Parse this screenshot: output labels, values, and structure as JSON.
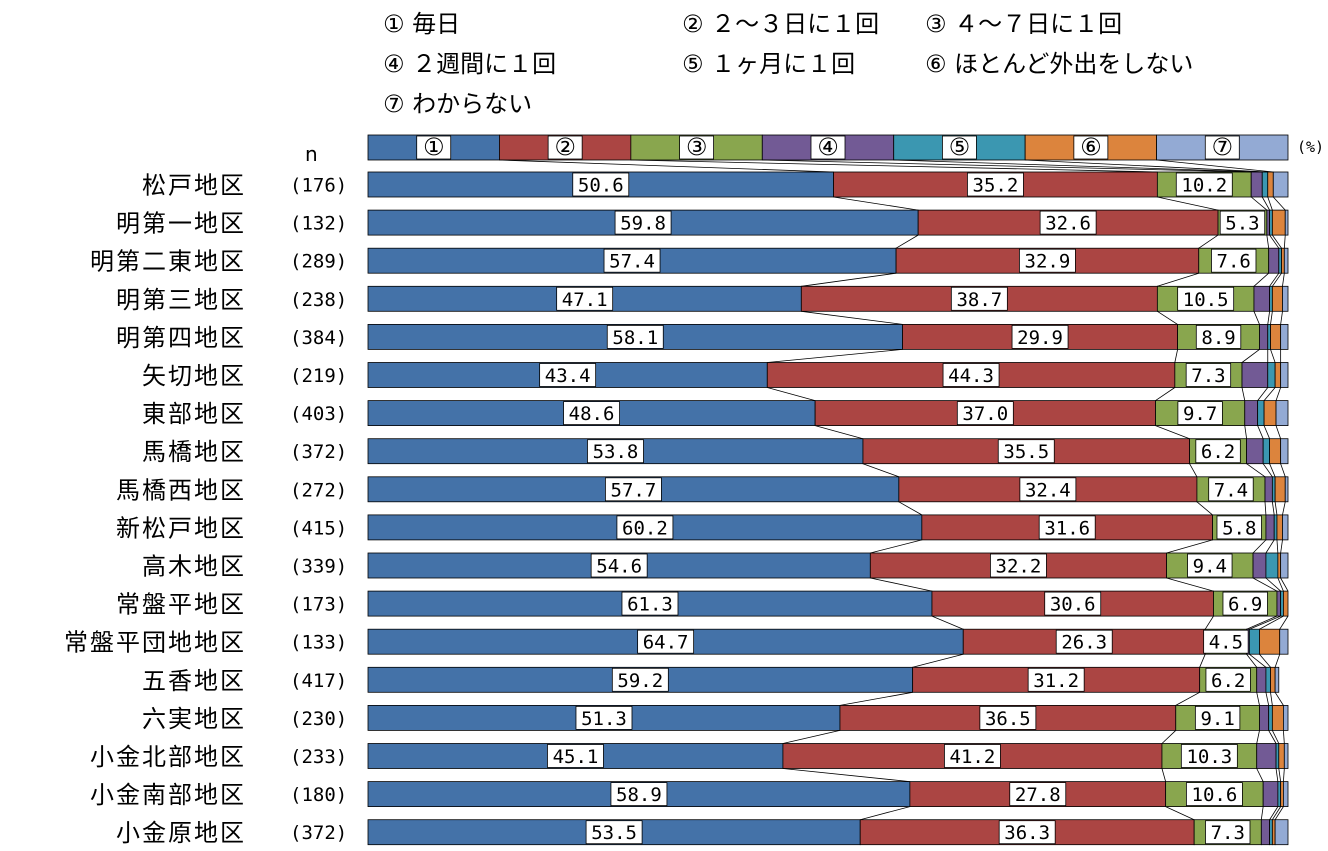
{
  "legend": [
    "① 毎日",
    "② ２～３日に１回",
    "③ ４～７日に１回",
    "④ ２週間に１回",
    "⑤ １ヶ月に１回",
    "⑥ ほとんど外出をしない",
    "⑦ わからない"
  ],
  "header": {
    "n_label": "n",
    "unit_label": "(%)",
    "segment_markers": [
      "①",
      "②",
      "③",
      "④",
      "⑤",
      "⑥",
      "⑦"
    ]
  },
  "chart_data": {
    "type": "bar",
    "orientation": "horizontal",
    "stacked": true,
    "normalized_to_100": true,
    "xlim": [
      0,
      100
    ],
    "categories": [
      "松戸地区",
      "明第一地区",
      "明第二東地区",
      "明第三地区",
      "明第四地区",
      "矢切地区",
      "東部地区",
      "馬橋地区",
      "馬橋西地区",
      "新松戸地区",
      "高木地区",
      "常盤平地区",
      "常盤平団地地区",
      "五香地区",
      "六実地区",
      "小金北部地区",
      "小金南部地区",
      "小金原地区"
    ],
    "n": [
      "(176)",
      "(132)",
      "(289)",
      "(238)",
      "(384)",
      "(219)",
      "(403)",
      "(372)",
      "(272)",
      "(415)",
      "(339)",
      "(173)",
      "(133)",
      "(417)",
      "(230)",
      "(233)",
      "(180)",
      "(372)"
    ],
    "series": [
      {
        "name": "① 毎日",
        "color": "#4472a8",
        "values": [
          50.6,
          59.8,
          57.4,
          47.1,
          58.1,
          43.4,
          48.6,
          53.8,
          57.7,
          60.2,
          54.6,
          61.3,
          64.7,
          59.2,
          51.3,
          45.1,
          58.9,
          53.5
        ],
        "labels": [
          "50.6",
          "59.8",
          "57.4",
          "47.1",
          "58.1",
          "43.4",
          "48.6",
          "53.8",
          "57.7",
          "60.2",
          "54.6",
          "61.3",
          "64.7",
          "59.2",
          "51.3",
          "45.1",
          "58.9",
          "53.5"
        ]
      },
      {
        "name": "② ２～３日に１回",
        "color": "#ab4543",
        "values": [
          35.2,
          32.6,
          32.9,
          38.7,
          29.9,
          44.3,
          37.0,
          35.5,
          32.4,
          31.6,
          32.2,
          30.6,
          26.3,
          31.2,
          36.5,
          41.2,
          27.8,
          36.3
        ],
        "labels": [
          "35.2",
          "32.6",
          "32.9",
          "38.7",
          "29.9",
          "44.3",
          "37.0",
          "35.5",
          "32.4",
          "31.6",
          "32.2",
          "30.6",
          "26.3",
          "31.2",
          "36.5",
          "41.2",
          "27.8",
          "36.3"
        ]
      },
      {
        "name": "③ ４～７日に１回",
        "color": "#89a64e",
        "values": [
          10.2,
          5.3,
          7.6,
          10.5,
          8.9,
          7.3,
          9.7,
          6.2,
          7.4,
          5.8,
          9.4,
          6.9,
          4.5,
          6.2,
          9.1,
          10.3,
          10.6,
          7.3
        ],
        "labels": [
          "10.2",
          "5.3",
          "7.6",
          "10.5",
          "8.9",
          "7.3",
          "9.7",
          "6.2",
          "7.4",
          "5.8",
          "9.4",
          "6.9",
          "4.5",
          "6.2",
          "9.1",
          "10.3",
          "10.6",
          "7.3"
        ]
      },
      {
        "name": "④ ２週間に１回",
        "color": "#725a95",
        "values": [
          1.2,
          0.3,
          1.1,
          1.7,
          0.9,
          2.8,
          1.4,
          1.8,
          0.8,
          0.9,
          1.4,
          0.4,
          0.3,
          1.0,
          1.0,
          2.1,
          1.6,
          0.9
        ]
      },
      {
        "name": "⑤ １ヶ月に１回",
        "color": "#3b97b1",
        "values": [
          0.6,
          0.3,
          0.3,
          0.3,
          0.3,
          0.8,
          0.7,
          0.7,
          0.3,
          0.3,
          1.3,
          0.3,
          1.1,
          0.5,
          0.4,
          0.3,
          0.3,
          0.3
        ]
      },
      {
        "name": "⑥ ほとんど外出をしない",
        "color": "#dc843d",
        "values": [
          0.6,
          1.4,
          0.3,
          1.1,
          1.1,
          0.6,
          1.3,
          1.2,
          1.1,
          0.6,
          0.3,
          0.5,
          2.2,
          0.5,
          1.2,
          0.6,
          0.3,
          0.3
        ]
      },
      {
        "name": "⑦ わからない",
        "color": "#93aad4",
        "values": [
          1.6,
          0.3,
          0.4,
          0.6,
          0.8,
          0.8,
          1.3,
          0.8,
          0.3,
          0.6,
          0.8,
          0.0,
          0.9,
          0.4,
          0.5,
          0.4,
          0.5,
          1.4
        ]
      }
    ]
  }
}
